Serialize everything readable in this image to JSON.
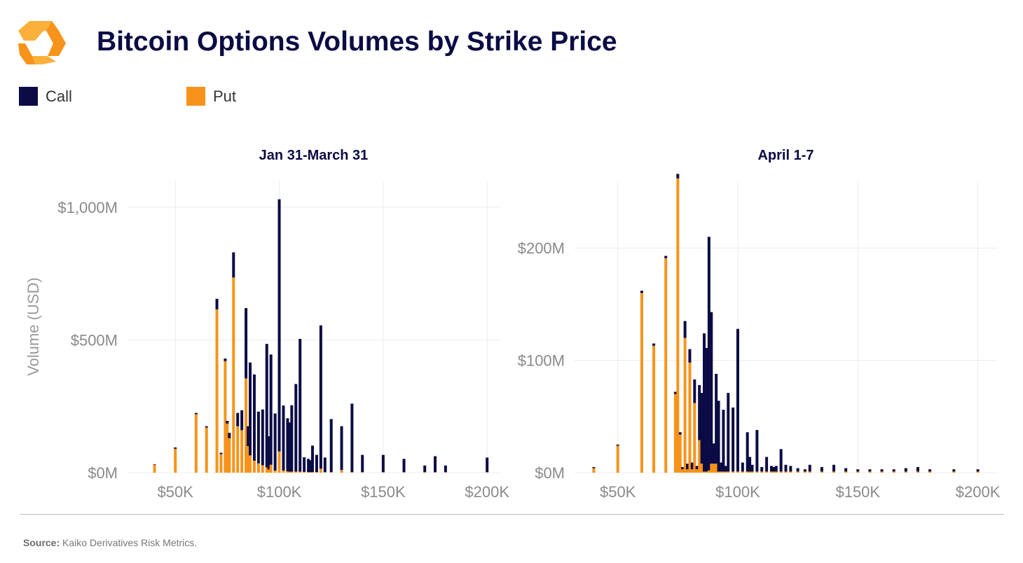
{
  "header": {
    "title": "Bitcoin Options Volumes by Strike Price"
  },
  "legend": {
    "items": [
      {
        "label": "Call",
        "color": "#0b0b45"
      },
      {
        "label": "Put",
        "color": "#f7931a"
      }
    ]
  },
  "colors": {
    "call": "#0b0b45",
    "put": "#f7931a",
    "logo_light": "#fbb03b",
    "logo_dark": "#f7931a"
  },
  "logo_icon": "kaiko-logo-icon",
  "chart_data": [
    {
      "type": "bar",
      "stacked": true,
      "title": "Jan 31-March 31",
      "xlabel": "",
      "ylabel": "Volume (USD)",
      "xlim": [
        27000,
        206000
      ],
      "ylim": [
        0,
        1100
      ],
      "y_unit": "M",
      "x_ticks": [
        50000,
        100000,
        150000,
        200000
      ],
      "x_tick_labels": [
        "$50K",
        "$100K",
        "$150K",
        "$200K"
      ],
      "y_ticks": [
        0,
        500,
        1000
      ],
      "y_tick_labels": [
        "$0M",
        "$500M",
        "$1,000M"
      ],
      "grid": true,
      "legend": "top-left",
      "x": [
        40000,
        50000,
        60000,
        65000,
        70000,
        72000,
        74000,
        75000,
        76000,
        78000,
        80000,
        82000,
        84000,
        85000,
        86000,
        88000,
        90000,
        92000,
        94000,
        95000,
        96000,
        98000,
        100000,
        102000,
        104000,
        105000,
        106000,
        108000,
        110000,
        112000,
        114000,
        115000,
        116000,
        118000,
        120000,
        122000,
        125000,
        130000,
        135000,
        140000,
        150000,
        160000,
        170000,
        175000,
        180000,
        200000
      ],
      "series": [
        {
          "name": "Put",
          "values": [
            30,
            90,
            220,
            170,
            615,
            70,
            420,
            185,
            130,
            735,
            175,
            160,
            355,
            100,
            65,
            45,
            35,
            28,
            20,
            12,
            30,
            8,
            80,
            8,
            5,
            4,
            4,
            4,
            4,
            3,
            2,
            2,
            2,
            2,
            15,
            2,
            2,
            10,
            2,
            2,
            2,
            2,
            2,
            2,
            2,
            2
          ]
        },
        {
          "name": "Call",
          "values": [
            2,
            5,
            5,
            5,
            40,
            5,
            10,
            10,
            20,
            95,
            50,
            75,
            265,
            75,
            350,
            325,
            195,
            210,
            465,
            125,
            415,
            215,
            950,
            245,
            200,
            185,
            250,
            330,
            500,
            55,
            50,
            45,
            100,
            65,
            540,
            55,
            200,
            165,
            258,
            65,
            65,
            50,
            25,
            60,
            25,
            55
          ]
        }
      ]
    },
    {
      "type": "bar",
      "stacked": true,
      "title": "April 1-7",
      "xlabel": "",
      "ylabel": "",
      "xlim": [
        32000,
        208000
      ],
      "ylim": [
        0,
        260
      ],
      "y_unit": "M",
      "x_ticks": [
        50000,
        100000,
        150000,
        200000
      ],
      "x_tick_labels": [
        "$50K",
        "$100K",
        "$150K",
        "$200K"
      ],
      "y_ticks": [
        0,
        100,
        200
      ],
      "y_tick_labels": [
        "$0M",
        "$100M",
        "$200M"
      ],
      "grid": true,
      "x": [
        40000,
        50000,
        60000,
        65000,
        70000,
        74000,
        75000,
        76000,
        77000,
        78000,
        79000,
        80000,
        81000,
        82000,
        83000,
        84000,
        85000,
        86000,
        87000,
        88000,
        89000,
        90000,
        91000,
        92000,
        93000,
        94000,
        95000,
        96000,
        98000,
        100000,
        102000,
        104000,
        105000,
        106000,
        108000,
        110000,
        112000,
        114000,
        115000,
        116000,
        118000,
        120000,
        122000,
        125000,
        128000,
        130000,
        135000,
        140000,
        145000,
        150000,
        155000,
        160000,
        165000,
        170000,
        175000,
        180000,
        190000,
        200000
      ],
      "series": [
        {
          "name": "Put",
          "values": [
            4,
            24,
            160,
            113,
            191,
            70,
            262,
            34,
            3,
            120,
            3,
            98,
            3,
            62,
            3,
            29,
            8,
            1,
            1,
            2,
            8,
            8,
            8,
            1,
            1,
            1,
            1,
            1,
            1,
            1,
            1,
            1,
            1,
            1,
            1,
            1,
            1,
            1,
            1,
            1,
            1,
            1,
            1,
            1,
            1,
            1,
            1,
            1,
            1,
            1,
            1,
            1,
            1,
            1,
            1,
            1,
            1,
            1
          ]
        },
        {
          "name": "Call",
          "values": [
            1,
            1,
            2,
            2,
            2,
            2,
            4,
            2,
            2,
            15,
            5,
            12,
            6,
            21,
            3,
            49,
            63,
            123,
            110,
            208,
            135,
            18,
            80,
            63,
            8,
            55,
            5,
            70,
            57,
            127,
            8,
            35,
            13,
            6,
            37,
            4,
            13,
            5,
            4,
            5,
            20,
            6,
            5,
            3,
            2,
            6,
            4,
            6,
            3,
            2,
            2,
            2,
            2,
            3,
            4,
            2,
            2,
            2
          ]
        }
      ]
    }
  ],
  "footer": {
    "source_label": "Source:",
    "source_text": "Kaiko Derivatives Risk Metrics."
  }
}
